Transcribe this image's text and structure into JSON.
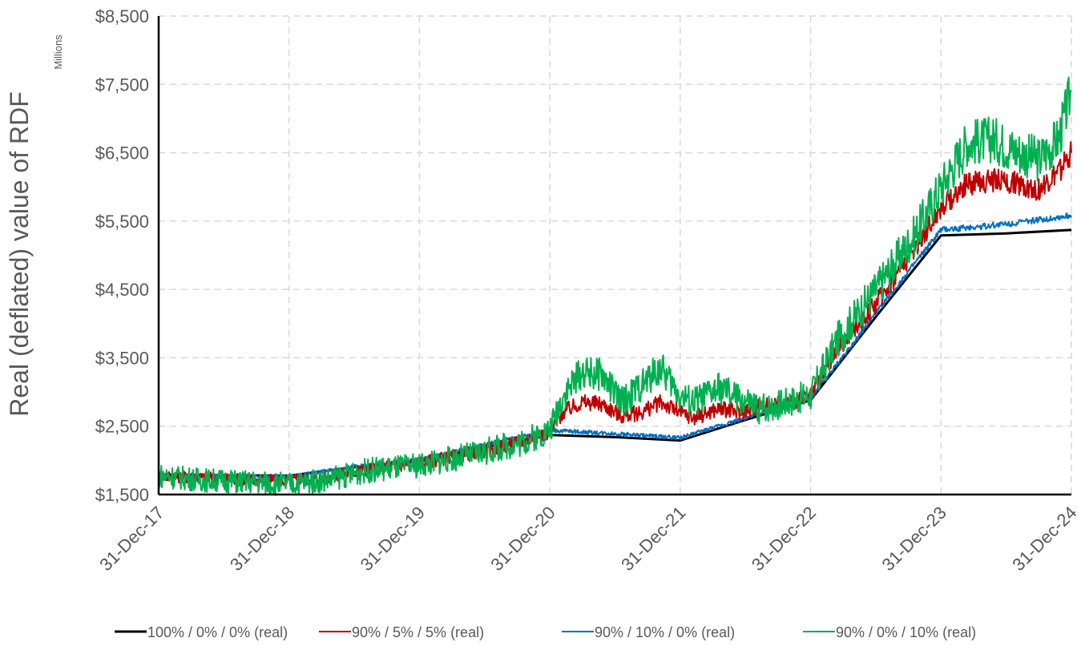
{
  "chart_data": {
    "type": "line",
    "title": "",
    "ylabel": "Real (deflated) value of RDF",
    "yunits": "Millions",
    "xlabel": "",
    "ylim": [
      1500,
      8500
    ],
    "yticks": [
      1500,
      2500,
      3500,
      4500,
      5500,
      6500,
      7500,
      8500
    ],
    "ytick_labels": [
      "$1,500",
      "$2,500",
      "$3,500",
      "$4,500",
      "$5,500",
      "$6,500",
      "$7,500",
      "$8,500"
    ],
    "xlim": [
      2017.0,
      2024.0
    ],
    "xtick_labels": [
      "31-Dec-17",
      "31-Dec-18",
      "31-Dec-19",
      "31-Dec-20",
      "31-Dec-21",
      "31-Dec-22",
      "31-Dec-23",
      "31-Dec-24"
    ],
    "grid": true,
    "legend_position": "bottom",
    "series": [
      {
        "name": "100% / 0% / 0% (real)",
        "color": "#000000",
        "points": [
          [
            2017.0,
            1790
          ],
          [
            2018.0,
            1775
          ],
          [
            2018.5,
            1900
          ],
          [
            2019.0,
            1990
          ],
          [
            2019.5,
            2190
          ],
          [
            2020.0,
            2370
          ],
          [
            2020.5,
            2340
          ],
          [
            2021.0,
            2290
          ],
          [
            2021.5,
            2590
          ],
          [
            2022.0,
            2880
          ],
          [
            2022.5,
            4100
          ],
          [
            2023.0,
            5290
          ],
          [
            2023.5,
            5320
          ],
          [
            2024.0,
            5370
          ]
        ]
      },
      {
        "name": "90% / 5% / 5% (real)",
        "color": "#c00000",
        "points": [
          [
            2017.0,
            1770
          ],
          [
            2017.3,
            1750
          ],
          [
            2017.6,
            1720
          ],
          [
            2018.0,
            1700
          ],
          [
            2018.3,
            1760
          ],
          [
            2018.6,
            1870
          ],
          [
            2019.0,
            1960
          ],
          [
            2019.4,
            2100
          ],
          [
            2019.8,
            2280
          ],
          [
            2020.0,
            2420
          ],
          [
            2020.1,
            2700
          ],
          [
            2020.25,
            2850
          ],
          [
            2020.4,
            2820
          ],
          [
            2020.55,
            2650
          ],
          [
            2020.7,
            2700
          ],
          [
            2020.85,
            2850
          ],
          [
            2021.0,
            2700
          ],
          [
            2021.1,
            2620
          ],
          [
            2021.3,
            2760
          ],
          [
            2021.45,
            2700
          ],
          [
            2021.6,
            2780
          ],
          [
            2021.8,
            2830
          ],
          [
            2022.0,
            2920
          ],
          [
            2022.2,
            3600
          ],
          [
            2022.5,
            4300
          ],
          [
            2022.8,
            5100
          ],
          [
            2023.0,
            5700
          ],
          [
            2023.2,
            6050
          ],
          [
            2023.4,
            6100
          ],
          [
            2023.6,
            6050
          ],
          [
            2023.75,
            5950
          ],
          [
            2023.9,
            6200
          ],
          [
            2024.0,
            6500
          ]
        ]
      },
      {
        "name": "90% / 10% / 0% (real)",
        "color": "#0070c0",
        "points": [
          [
            2017.0,
            1790
          ],
          [
            2018.0,
            1760
          ],
          [
            2018.5,
            1910
          ],
          [
            2019.0,
            2010
          ],
          [
            2019.5,
            2230
          ],
          [
            2020.0,
            2440
          ],
          [
            2020.5,
            2390
          ],
          [
            2021.0,
            2330
          ],
          [
            2021.5,
            2620
          ],
          [
            2022.0,
            2900
          ],
          [
            2022.5,
            4150
          ],
          [
            2023.0,
            5370
          ],
          [
            2023.3,
            5420
          ],
          [
            2023.6,
            5480
          ],
          [
            2024.0,
            5580
          ]
        ]
      },
      {
        "name": "90% / 0% / 10% (real)",
        "color": "#00b050",
        "points": [
          [
            2017.0,
            1780
          ],
          [
            2017.3,
            1720
          ],
          [
            2017.6,
            1690
          ],
          [
            2018.0,
            1650
          ],
          [
            2018.3,
            1720
          ],
          [
            2018.6,
            1850
          ],
          [
            2019.0,
            1930
          ],
          [
            2019.4,
            2080
          ],
          [
            2019.8,
            2270
          ],
          [
            2020.0,
            2440
          ],
          [
            2020.1,
            2950
          ],
          [
            2020.25,
            3300
          ],
          [
            2020.4,
            3250
          ],
          [
            2020.55,
            2850
          ],
          [
            2020.7,
            3100
          ],
          [
            2020.85,
            3350
          ],
          [
            2021.0,
            2950
          ],
          [
            2021.1,
            2850
          ],
          [
            2021.3,
            3050
          ],
          [
            2021.45,
            2900
          ],
          [
            2021.6,
            2750
          ],
          [
            2021.8,
            2850
          ],
          [
            2022.0,
            2950
          ],
          [
            2022.2,
            3750
          ],
          [
            2022.5,
            4500
          ],
          [
            2022.8,
            5300
          ],
          [
            2023.0,
            6000
          ],
          [
            2023.2,
            6650
          ],
          [
            2023.4,
            6700
          ],
          [
            2023.55,
            6550
          ],
          [
            2023.75,
            6400
          ],
          [
            2023.9,
            6700
          ],
          [
            2024.0,
            7400
          ]
        ]
      }
    ]
  }
}
